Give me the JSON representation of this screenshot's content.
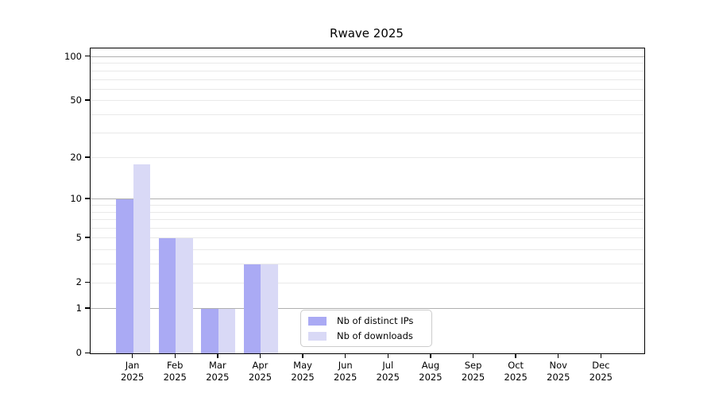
{
  "title": "Rwave 2025",
  "chart_data": {
    "type": "bar",
    "title": "Rwave 2025",
    "categories": [
      "Jan 2025",
      "Feb 2025",
      "Mar 2025",
      "Apr 2025",
      "May 2025",
      "Jun 2025",
      "Jul 2025",
      "Aug 2025",
      "Sep 2025",
      "Oct 2025",
      "Nov 2025",
      "Dec 2025"
    ],
    "x_tick_months": [
      "Jan",
      "Feb",
      "Mar",
      "Apr",
      "May",
      "Jun",
      "Jul",
      "Aug",
      "Sep",
      "Oct",
      "Nov",
      "Dec"
    ],
    "x_tick_year": "2025",
    "series": [
      {
        "name": "Nb of distinct IPs",
        "color": "#aaaaf4",
        "values": [
          10,
          5,
          1,
          3,
          0,
          0,
          0,
          0,
          0,
          0,
          0,
          0
        ]
      },
      {
        "name": "Nb of downloads",
        "color": "#d9d9f6",
        "values": [
          18,
          5,
          1,
          3,
          0,
          0,
          0,
          0,
          0,
          0,
          0,
          0
        ]
      }
    ],
    "y_axis": {
      "scale": "log1p",
      "tick_values": [
        0,
        1,
        2,
        5,
        10,
        20,
        50,
        100
      ],
      "max": 114,
      "major_gridlines": [
        1,
        10,
        100
      ],
      "minor_gridlines": [
        2,
        3,
        4,
        5,
        6,
        7,
        8,
        9,
        20,
        30,
        40,
        50,
        60,
        70,
        80,
        90
      ]
    },
    "legend": {
      "entries": [
        {
          "label": "Nb of distinct IPs",
          "color": "#aaaaf4"
        },
        {
          "label": "Nb of downloads",
          "color": "#d9d9f6"
        }
      ]
    },
    "colors": {
      "major_grid": "#b0b0b0",
      "minor_grid": "#e9e9e9",
      "axis": "#000000"
    },
    "grid": true,
    "legend_position": "lower-center"
  }
}
